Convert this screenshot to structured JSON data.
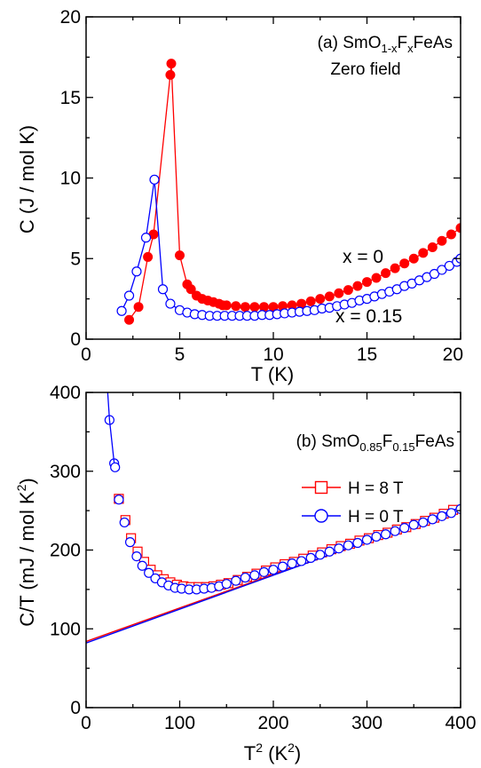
{
  "chart_data": [
    {
      "type": "scatter",
      "panel": "(a)",
      "annotation": {
        "line1": {
          "panel": "(a)",
          "base": "SmO",
          "sub1": "1-x",
          "mid": "F",
          "sub2": "x",
          "tail": "FeAs"
        },
        "line2": "Zero field"
      },
      "xlabel": "T (K)",
      "ylabel": "C (J / mol K)",
      "xlim": [
        0,
        20
      ],
      "ylim": [
        0,
        20
      ],
      "xticks": [
        "0",
        "5",
        "10",
        "15",
        "20"
      ],
      "yticks": [
        "0",
        "5",
        "10",
        "15",
        "20"
      ],
      "series": [
        {
          "name": "x = 0",
          "color": "#ff0000",
          "marker": "filled-circle",
          "connected": true,
          "x": [
            2.3,
            2.8,
            3.3,
            3.6,
            4.5,
            4.55,
            5.0,
            5.4,
            5.6,
            5.9,
            6.2,
            6.5,
            6.8,
            7.1,
            7.3,
            7.5,
            8.0,
            8.5,
            9.0,
            9.5,
            10.0,
            10.5,
            11.0,
            11.5,
            12.0,
            12.5,
            13.0,
            13.5,
            14.0,
            14.5,
            15.0,
            15.5,
            16.0,
            16.5,
            17.0,
            17.5,
            18.0,
            18.5,
            19.0,
            19.5,
            20.0
          ],
          "y": [
            1.2,
            2.0,
            5.1,
            6.5,
            16.4,
            17.1,
            5.2,
            3.4,
            3.1,
            2.7,
            2.5,
            2.4,
            2.3,
            2.2,
            2.1,
            2.1,
            2.05,
            2.0,
            2.0,
            2.0,
            2.0,
            2.05,
            2.1,
            2.2,
            2.35,
            2.5,
            2.65,
            2.85,
            3.05,
            3.3,
            3.55,
            3.8,
            4.1,
            4.4,
            4.7,
            5.0,
            5.35,
            5.7,
            6.1,
            6.5,
            6.9
          ]
        },
        {
          "name": "x = 0.15",
          "color": "#0000ff",
          "marker": "open-circle",
          "connected": true,
          "x": [
            1.9,
            2.3,
            2.7,
            3.2,
            3.65,
            4.1,
            4.5,
            5.0,
            5.4,
            5.8,
            6.2,
            6.6,
            7.0,
            7.4,
            7.8,
            8.2,
            8.6,
            9.0,
            9.4,
            9.8,
            10.2,
            10.6,
            11.0,
            11.4,
            11.8,
            12.2,
            12.6,
            13.0,
            13.4,
            13.8,
            14.2,
            14.6,
            15.0,
            15.4,
            15.8,
            16.2,
            16.6,
            17.0,
            17.4,
            17.8,
            18.2,
            18.6,
            19.0,
            19.4,
            19.8,
            20.0
          ],
          "y": [
            1.75,
            2.7,
            4.2,
            6.3,
            9.9,
            3.1,
            2.2,
            1.8,
            1.65,
            1.55,
            1.5,
            1.45,
            1.45,
            1.45,
            1.45,
            1.45,
            1.45,
            1.45,
            1.5,
            1.5,
            1.55,
            1.6,
            1.65,
            1.7,
            1.75,
            1.8,
            1.9,
            1.95,
            2.05,
            2.15,
            2.25,
            2.4,
            2.5,
            2.65,
            2.8,
            2.95,
            3.1,
            3.3,
            3.45,
            3.65,
            3.85,
            4.05,
            4.3,
            4.55,
            4.8,
            5.0
          ]
        }
      ]
    },
    {
      "type": "scatter",
      "panel": "(b)",
      "annotation": {
        "line1": {
          "panel": "(b)",
          "base": "SmO",
          "sub1": "0.85",
          "mid": "F",
          "sub2": "0.15",
          "tail": "FeAs"
        }
      },
      "xlabel": {
        "base": "T",
        "sup": "2",
        "unit_open": " (K",
        "unit_sup": "2",
        "unit_close": ")"
      },
      "ylabel": {
        "base": "C/T (mJ / mol K",
        "sup": "2",
        "close": ")"
      },
      "xlim": [
        0,
        400
      ],
      "ylim": [
        0,
        400
      ],
      "xticks": [
        "0",
        "100",
        "200",
        "300",
        "400"
      ],
      "yticks": [
        "0",
        "100",
        "200",
        "300",
        "400"
      ],
      "legend": {
        "placement": "top-right"
      },
      "series": [
        {
          "name": "H = 8 T",
          "color": "#ff0000",
          "marker": "open-square",
          "fit": {
            "intercept": 84,
            "slope": 0.425
          },
          "x": [
            35,
            42,
            48,
            55,
            62,
            69,
            76,
            83,
            90,
            97,
            104,
            112,
            120,
            128,
            136,
            144,
            152,
            162,
            172,
            182,
            192,
            202,
            212,
            222,
            232,
            242,
            252,
            262,
            272,
            282,
            292,
            302,
            312,
            322,
            332,
            342,
            352,
            362,
            372,
            382,
            392
          ],
          "y": [
            265,
            238,
            215,
            198,
            185,
            175,
            168,
            163,
            159,
            156,
            154,
            153,
            153,
            153,
            154,
            156,
            158,
            162,
            166,
            170,
            174,
            178,
            182,
            185,
            189,
            193,
            197,
            201,
            205,
            208,
            212,
            215,
            219,
            222,
            226,
            229,
            233,
            237,
            241,
            246,
            251
          ]
        },
        {
          "name": "H = 0 T",
          "color": "#0000ff",
          "marker": "open-circle",
          "fit": {
            "intercept": 82,
            "slope": 0.43
          },
          "x": [
            25,
            30,
            31,
            35,
            41,
            47,
            54,
            60,
            67,
            74,
            81,
            88,
            95,
            102,
            110,
            118,
            126,
            134,
            142,
            150,
            160,
            170,
            180,
            190,
            200,
            210,
            220,
            230,
            240,
            250,
            260,
            270,
            280,
            290,
            300,
            310,
            320,
            330,
            340,
            350,
            360,
            370,
            380,
            390,
            400
          ],
          "y": [
            365,
            310,
            305,
            264,
            235,
            210,
            192,
            180,
            171,
            164,
            159,
            155,
            152,
            151,
            150,
            150,
            151,
            152,
            154,
            157,
            161,
            165,
            168,
            172,
            175,
            179,
            183,
            186,
            190,
            194,
            198,
            202,
            206,
            209,
            213,
            217,
            220,
            224,
            228,
            232,
            235,
            239,
            243,
            247,
            252
          ]
        },
        {
          "name": "",
          "color": "#0000ff",
          "marker": "none",
          "role": "steep-rise",
          "x": [
            22,
            25,
            30
          ],
          "y": [
            420,
            365,
            310
          ]
        }
      ]
    }
  ]
}
